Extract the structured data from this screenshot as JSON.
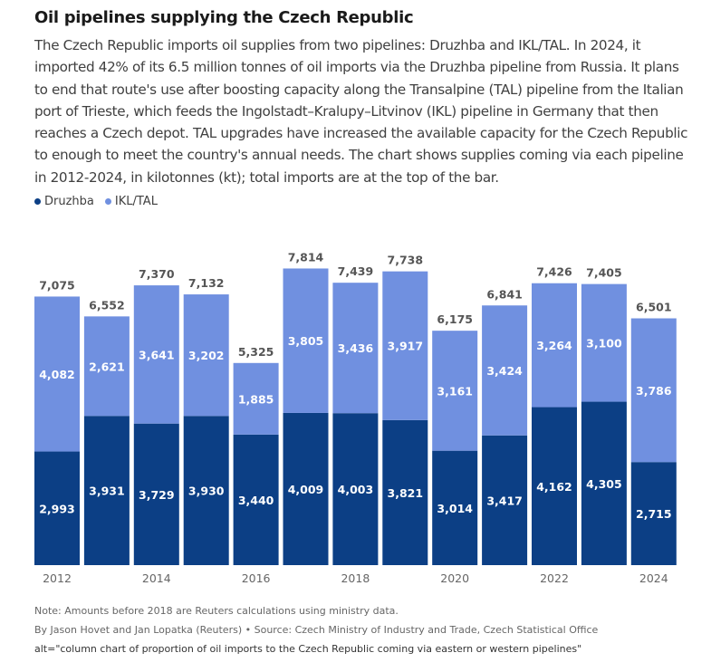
{
  "title": "Oil pipelines supplying the Czech Republic",
  "description": "The Czech Republic imports oil supplies from two pipelines: Druzhba and IKL/TAL. In 2024, it imported 42% of its 6.5 million tonnes of oil imports via the Druzhba pipeline from Russia. It plans to end that route's use after boosting capacity along the Transalpine (TAL) pipeline from the Italian port of Trieste, which feeds the Ingolstadt–Kralupy–Litvinov (IKL) pipeline in Germany that then reaches a Czech depot. TAL upgrades have increased the available capacity for the Czech Republic to enough to meet the country's annual needs. The chart shows supplies coming via each pipeline in 2012-2024, in kilotonnes (kt); total imports are at the top of the bar.",
  "note": "Note: Amounts before 2018 are Reuters calculations using ministry data.",
  "source": "By Jason Hovet and Jan Lopatka (Reuters) • Source: Czech Ministry of Industry and Trade, Czech Statistical Office",
  "alt_text": "alt=\"column chart of proportion of oil imports to the Czech Republic coming via eastern or western pipelines\"",
  "colors": {
    "druzhba": "#0c3f85",
    "ikl_tal": "#7090e0",
    "total_label": "#555555",
    "axis_label": "#666666"
  },
  "chart_data": {
    "type": "bar",
    "stacked": true,
    "categories": [
      "2012",
      "2013",
      "2014",
      "2015",
      "2016",
      "2017",
      "2018",
      "2019",
      "2020",
      "2021",
      "2022",
      "2023",
      "2024"
    ],
    "x_tick_labels": [
      "2012",
      "",
      "2014",
      "",
      "2016",
      "",
      "2018",
      "",
      "2020",
      "",
      "2022",
      "",
      "2024"
    ],
    "series": [
      {
        "name": "Druzhba",
        "values": [
          2993,
          3931,
          3729,
          3930,
          3440,
          4009,
          4003,
          3821,
          3014,
          3417,
          4162,
          4305,
          2715
        ],
        "labels": [
          "2,993",
          "3,931",
          "3,729",
          "3,930",
          "3,440",
          "4,009",
          "4,003",
          "3,821",
          "3,014",
          "3,417",
          "4,162",
          "4,305",
          "2,715"
        ]
      },
      {
        "name": "IKL/TAL",
        "values": [
          4082,
          2621,
          3641,
          3202,
          1885,
          3805,
          3436,
          3917,
          3161,
          3424,
          3264,
          3100,
          3786
        ],
        "labels": [
          "4,082",
          "2,621",
          "3,641",
          "3,202",
          "1,885",
          "3,805",
          "3,436",
          "3,917",
          "3,161",
          "3,424",
          "3,264",
          "3,100",
          "3,786"
        ]
      }
    ],
    "totals": [
      7075,
      6552,
      7370,
      7132,
      5325,
      7814,
      7439,
      7738,
      6175,
      6841,
      7426,
      7405,
      6501
    ],
    "total_labels": [
      "7,075",
      "6,552",
      "7,370",
      "7,132",
      "5,325",
      "7,814",
      "7,439",
      "7,738",
      "6,175",
      "6,841",
      "7,426",
      "7,405",
      "6,501"
    ],
    "ylim": [
      0,
      8350
    ],
    "legend": "top-left",
    "grid": false,
    "unit": "kt"
  }
}
